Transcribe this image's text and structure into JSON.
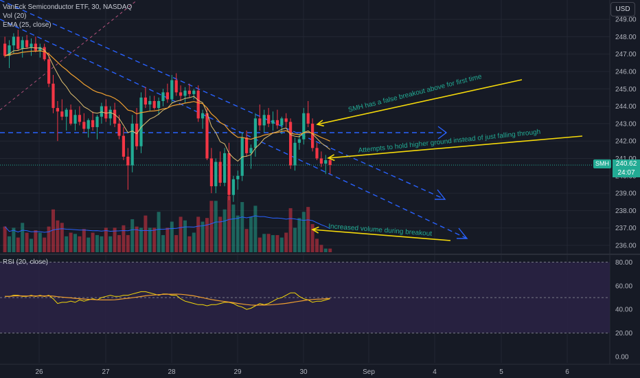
{
  "header": {
    "symbol_line": "VanEck Semiconductor ETF, 30, NASDAQ",
    "vol_label": "Vol (20)",
    "ema_label": "EMA (25, close)",
    "currency_button": "USD"
  },
  "price_tag": {
    "symbol": "SMH",
    "price": "240.62",
    "countdown": "24:07"
  },
  "rsi_label": "RSI (20, close)",
  "colors": {
    "up": "#22ab94",
    "down": "#f23645",
    "ema": "#f0a030",
    "vol_ma": "#2962ff",
    "annotation_arrow": "#f5d90a",
    "annotation_text": "#22ab94",
    "trendline": "#2962ff",
    "rsi_line": "#f5d90a",
    "rsi_ma": "#f0a030"
  },
  "chart_data": [
    {
      "type": "candlestick",
      "title": "VanEck Semiconductor ETF, 30, NASDAQ",
      "y_axis_ticks": [
        "236.00",
        "237.00",
        "238.00",
        "239.00",
        "240.00",
        "241.00",
        "242.00",
        "243.00",
        "244.00",
        "245.00",
        "246.00",
        "247.00",
        "248.00",
        "249.00"
      ],
      "ylim": [
        235.7,
        249.5
      ],
      "x_axis_ticks": [
        "26",
        "27",
        "28",
        "29",
        "30",
        "Sep",
        "4",
        "5",
        "6"
      ],
      "last_price": 240.62,
      "candles": [
        {
          "o": 247.6,
          "h": 248.0,
          "l": 246.8,
          "c": 246.9
        },
        {
          "o": 246.9,
          "h": 247.8,
          "l": 246.2,
          "c": 247.5
        },
        {
          "o": 247.5,
          "h": 248.2,
          "l": 247.0,
          "c": 248.0
        },
        {
          "o": 248.0,
          "h": 248.4,
          "l": 247.2,
          "c": 247.3
        },
        {
          "o": 247.3,
          "h": 248.0,
          "l": 246.8,
          "c": 247.8
        },
        {
          "o": 247.8,
          "h": 248.1,
          "l": 247.3,
          "c": 247.4
        },
        {
          "o": 247.4,
          "h": 247.9,
          "l": 246.9,
          "c": 247.6
        },
        {
          "o": 247.6,
          "h": 248.0,
          "l": 247.1,
          "c": 247.2
        },
        {
          "o": 247.2,
          "h": 247.6,
          "l": 246.8,
          "c": 247.4
        },
        {
          "o": 247.4,
          "h": 247.6,
          "l": 246.6,
          "c": 246.7
        },
        {
          "o": 246.7,
          "h": 247.1,
          "l": 245.1,
          "c": 245.3
        },
        {
          "o": 245.3,
          "h": 245.8,
          "l": 243.6,
          "c": 243.9
        },
        {
          "o": 243.9,
          "h": 244.3,
          "l": 242.0,
          "c": 243.7
        },
        {
          "o": 243.7,
          "h": 244.4,
          "l": 243.2,
          "c": 243.4
        },
        {
          "o": 243.4,
          "h": 243.9,
          "l": 242.6,
          "c": 243.8
        },
        {
          "o": 243.8,
          "h": 244.1,
          "l": 242.9,
          "c": 243.0
        },
        {
          "o": 243.0,
          "h": 243.8,
          "l": 242.6,
          "c": 243.5
        },
        {
          "o": 243.5,
          "h": 244.0,
          "l": 242.9,
          "c": 243.1
        },
        {
          "o": 243.1,
          "h": 243.6,
          "l": 242.5,
          "c": 242.7
        },
        {
          "o": 242.7,
          "h": 243.3,
          "l": 242.2,
          "c": 243.2
        },
        {
          "o": 243.2,
          "h": 243.7,
          "l": 242.6,
          "c": 242.8
        },
        {
          "o": 242.8,
          "h": 243.5,
          "l": 242.1,
          "c": 243.4
        },
        {
          "o": 243.4,
          "h": 244.2,
          "l": 243.0,
          "c": 244.0
        },
        {
          "o": 244.0,
          "h": 244.4,
          "l": 243.1,
          "c": 243.3
        },
        {
          "o": 243.3,
          "h": 244.0,
          "l": 242.9,
          "c": 243.8
        },
        {
          "o": 243.8,
          "h": 244.2,
          "l": 242.8,
          "c": 243.0
        },
        {
          "o": 243.0,
          "h": 243.5,
          "l": 242.1,
          "c": 242.3
        },
        {
          "o": 242.3,
          "h": 242.8,
          "l": 240.9,
          "c": 241.1
        },
        {
          "o": 241.1,
          "h": 241.6,
          "l": 239.2,
          "c": 240.6
        },
        {
          "o": 240.6,
          "h": 243.5,
          "l": 240.2,
          "c": 243.0
        },
        {
          "o": 243.0,
          "h": 243.9,
          "l": 241.5,
          "c": 241.7
        },
        {
          "o": 241.7,
          "h": 244.8,
          "l": 241.3,
          "c": 244.5
        },
        {
          "o": 244.5,
          "h": 245.1,
          "l": 243.9,
          "c": 244.1
        },
        {
          "o": 244.1,
          "h": 244.6,
          "l": 243.7,
          "c": 244.3
        },
        {
          "o": 244.3,
          "h": 244.6,
          "l": 243.8,
          "c": 243.9
        },
        {
          "o": 243.9,
          "h": 244.5,
          "l": 243.5,
          "c": 244.3
        },
        {
          "o": 244.3,
          "h": 245.0,
          "l": 244.0,
          "c": 244.8
        },
        {
          "o": 244.8,
          "h": 245.3,
          "l": 244.2,
          "c": 244.4
        },
        {
          "o": 244.4,
          "h": 245.8,
          "l": 244.2,
          "c": 245.5
        },
        {
          "o": 245.5,
          "h": 245.9,
          "l": 244.6,
          "c": 244.8
        },
        {
          "o": 244.8,
          "h": 245.2,
          "l": 244.3,
          "c": 244.6
        },
        {
          "o": 244.6,
          "h": 245.1,
          "l": 244.2,
          "c": 244.9
        },
        {
          "o": 244.9,
          "h": 245.3,
          "l": 244.5,
          "c": 244.7
        },
        {
          "o": 244.7,
          "h": 245.0,
          "l": 244.4,
          "c": 244.9
        },
        {
          "o": 244.9,
          "h": 245.2,
          "l": 243.1,
          "c": 243.3
        },
        {
          "o": 243.3,
          "h": 243.8,
          "l": 242.7,
          "c": 243.6
        },
        {
          "o": 243.6,
          "h": 243.9,
          "l": 240.9,
          "c": 241.0
        },
        {
          "o": 241.0,
          "h": 241.6,
          "l": 239.0,
          "c": 239.4
        },
        {
          "o": 239.4,
          "h": 241.0,
          "l": 239.0,
          "c": 240.8
        },
        {
          "o": 240.8,
          "h": 241.4,
          "l": 239.4,
          "c": 239.6
        },
        {
          "o": 239.6,
          "h": 241.6,
          "l": 239.4,
          "c": 241.3
        },
        {
          "o": 241.3,
          "h": 241.9,
          "l": 238.6,
          "c": 238.9
        },
        {
          "o": 238.9,
          "h": 240.0,
          "l": 238.5,
          "c": 239.8
        },
        {
          "o": 239.8,
          "h": 240.3,
          "l": 239.2,
          "c": 240.0
        },
        {
          "o": 240.0,
          "h": 242.5,
          "l": 239.7,
          "c": 242.2
        },
        {
          "o": 242.2,
          "h": 242.6,
          "l": 241.1,
          "c": 241.3
        },
        {
          "o": 241.3,
          "h": 241.8,
          "l": 240.4,
          "c": 241.6
        },
        {
          "o": 241.6,
          "h": 243.6,
          "l": 241.1,
          "c": 243.3
        },
        {
          "o": 243.3,
          "h": 244.1,
          "l": 242.6,
          "c": 242.9
        },
        {
          "o": 242.9,
          "h": 243.8,
          "l": 242.5,
          "c": 243.5
        },
        {
          "o": 243.5,
          "h": 243.9,
          "l": 242.8,
          "c": 243.0
        },
        {
          "o": 243.0,
          "h": 243.7,
          "l": 242.6,
          "c": 243.2
        },
        {
          "o": 243.2,
          "h": 243.8,
          "l": 242.7,
          "c": 242.9
        },
        {
          "o": 242.9,
          "h": 243.4,
          "l": 242.4,
          "c": 243.3
        },
        {
          "o": 243.3,
          "h": 243.6,
          "l": 242.8,
          "c": 243.1
        },
        {
          "o": 243.1,
          "h": 243.3,
          "l": 240.4,
          "c": 240.6
        },
        {
          "o": 240.6,
          "h": 242.2,
          "l": 240.3,
          "c": 241.9
        },
        {
          "o": 241.9,
          "h": 242.4,
          "l": 241.5,
          "c": 242.1
        },
        {
          "o": 242.1,
          "h": 243.9,
          "l": 241.8,
          "c": 243.6
        },
        {
          "o": 243.6,
          "h": 244.3,
          "l": 242.8,
          "c": 243.0
        },
        {
          "o": 243.0,
          "h": 243.3,
          "l": 241.4,
          "c": 241.6
        },
        {
          "o": 241.6,
          "h": 241.9,
          "l": 240.9,
          "c": 241.0
        },
        {
          "o": 241.0,
          "h": 241.4,
          "l": 240.5,
          "c": 240.7
        },
        {
          "o": 240.7,
          "h": 241.2,
          "l": 240.1,
          "c": 240.9
        },
        {
          "o": 240.9,
          "h": 241.1,
          "l": 240.1,
          "c": 240.62
        }
      ],
      "volume": [
        21,
        13,
        20,
        12,
        24,
        16,
        11,
        18,
        16,
        12,
        21,
        35,
        26,
        24,
        13,
        16,
        15,
        13,
        19,
        12,
        16,
        14,
        13,
        20,
        13,
        20,
        14,
        22,
        14,
        27,
        21,
        20,
        30,
        20,
        20,
        33,
        14,
        20,
        25,
        14,
        29,
        26,
        13,
        16,
        29,
        25,
        28,
        42,
        42,
        29,
        35,
        46,
        39,
        30,
        41,
        19,
        29,
        38,
        12,
        15,
        15,
        14,
        14,
        12,
        16,
        36,
        20,
        28,
        33,
        37,
        23,
        11,
        6,
        3,
        3
      ],
      "annotations": [
        "SMH has a false breakout above for first time",
        "Attempts to hold higher ground instead of just falling through",
        "Increased volume during breakout"
      ]
    },
    {
      "type": "line",
      "title": "RSI (20, close)",
      "y_axis_ticks": [
        "0.00",
        "20.00",
        "40.00",
        "60.00",
        "80.00"
      ],
      "ylim": [
        0,
        80
      ],
      "bands": [
        20,
        50,
        80
      ],
      "values": [
        51,
        51,
        52,
        52,
        51,
        51,
        52,
        51,
        52,
        51,
        52,
        49,
        45,
        46,
        46,
        47,
        46,
        48,
        47,
        48,
        49,
        48,
        50,
        51,
        52,
        51,
        51,
        52,
        52,
        53,
        54,
        55,
        55,
        54,
        53,
        52,
        53,
        53,
        52,
        52,
        49,
        47,
        46,
        45,
        44,
        44,
        43,
        44,
        44,
        45,
        46,
        46,
        45,
        43,
        42,
        40,
        41,
        43,
        45,
        44,
        45,
        47,
        49,
        50,
        52,
        54,
        54,
        51,
        49,
        48,
        46,
        47,
        47,
        48,
        49
      ]
    }
  ]
}
